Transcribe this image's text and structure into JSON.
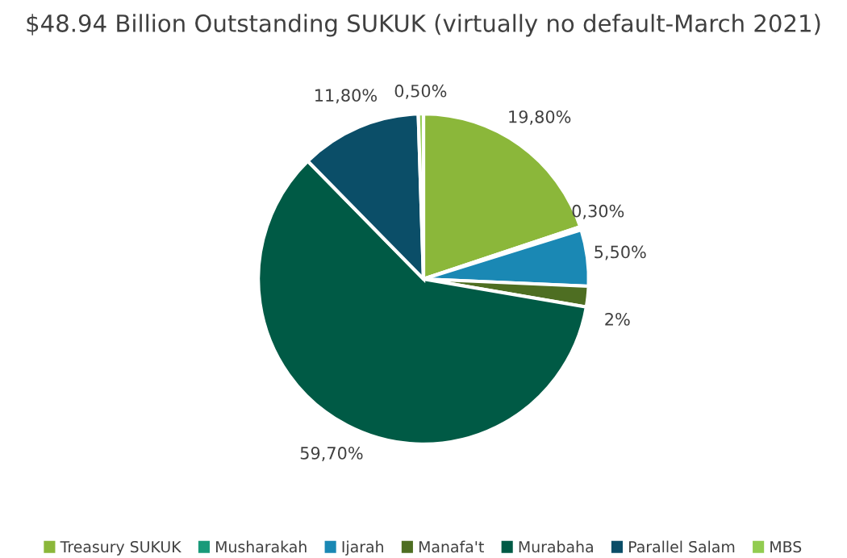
{
  "chart_data": {
    "type": "pie",
    "title": "$48.94 Billion Outstanding SUKUK (virtually no default-March 2021)",
    "categories": [
      "Treasury SUKUK",
      "Musharakah",
      "Ijarah",
      "Manafa't",
      "Murabaha",
      "Parallel Salam",
      "MBS"
    ],
    "values": [
      19.8,
      0.3,
      5.5,
      2,
      59.7,
      11.8,
      0.5
    ],
    "value_labels": [
      "19,80%",
      "0,30%",
      "5,50%",
      "2%",
      "59,70%",
      "11,80%",
      "0,50%"
    ],
    "colors": [
      "#8bb73a",
      "#1a9a7a",
      "#1a88b4",
      "#4e6e22",
      "#005a45",
      "#0b4e68",
      "#92cc50"
    ],
    "legend": "bottom"
  }
}
